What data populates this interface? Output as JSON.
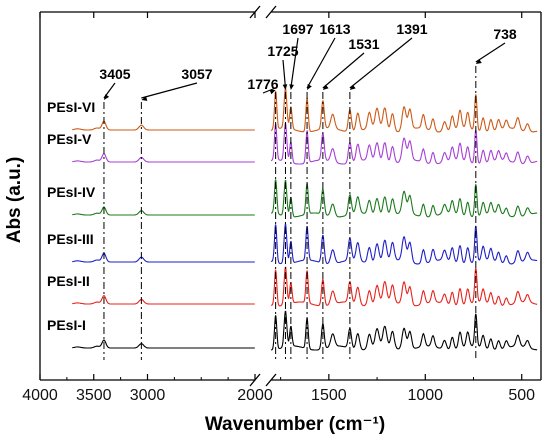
{
  "chart_data": {
    "type": "line",
    "xlabel": "Wavenumber (cm⁻¹)",
    "ylabel": "Abs (a.u.)",
    "x_reversed": true,
    "x_break": [
      2000,
      1800
    ],
    "x_segments": [
      [
        4000,
        2000
      ],
      [
        1800,
        400
      ]
    ],
    "x_ticks": [
      {
        "value": 4000,
        "label": "4000"
      },
      {
        "value": 3500,
        "label": "3500"
      },
      {
        "value": 3000,
        "label": "3000"
      },
      {
        "value": 2000,
        "label": "2000"
      },
      {
        "value": 1500,
        "label": "1500"
      },
      {
        "value": 1000,
        "label": "1000"
      },
      {
        "value": 500,
        "label": "500"
      }
    ],
    "peak_markers": [
      {
        "wavenumber": 3405,
        "label": "3405"
      },
      {
        "wavenumber": 3057,
        "label": "3057"
      },
      {
        "wavenumber": 1776,
        "label": "1776"
      },
      {
        "wavenumber": 1725,
        "label": "1725"
      },
      {
        "wavenumber": 1697,
        "label": "1697"
      },
      {
        "wavenumber": 1613,
        "label": "1613"
      },
      {
        "wavenumber": 1531,
        "label": "1531"
      },
      {
        "wavenumber": 1391,
        "label": "1391"
      },
      {
        "wavenumber": 738,
        "label": "738"
      }
    ],
    "series": [
      {
        "name": "PEsI-I",
        "color": "#000000",
        "offset": 0
      },
      {
        "name": "PEsI-II",
        "color": "#e8221c",
        "offset": 1
      },
      {
        "name": "PEsI-III",
        "color": "#1f1fc8",
        "offset": 2
      },
      {
        "name": "PEsI-IV",
        "color": "#1d7a1d",
        "offset": 3
      },
      {
        "name": "PEsI-V",
        "color": "#a73fd6",
        "offset": 4
      },
      {
        "name": "PEsI-VI",
        "color": "#cc5a16",
        "offset": 5
      }
    ],
    "grid": false,
    "legend": "inline-left"
  }
}
